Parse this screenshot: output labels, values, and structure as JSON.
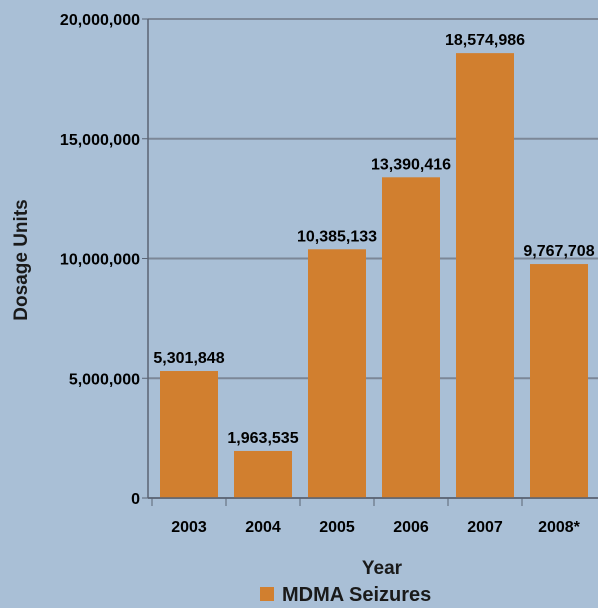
{
  "chart_data": {
    "type": "bar",
    "categories": [
      "2003",
      "2004",
      "2005",
      "2006",
      "2007",
      "2008*"
    ],
    "series": [
      {
        "name": "MDMA Seizures",
        "values": [
          5301848,
          1963535,
          10385133,
          13390416,
          18574986,
          9767708
        ],
        "value_labels": [
          "5,301,848",
          "1,963,535",
          "10,385,133",
          "13,390,416",
          "18,574,986",
          "9,767,708"
        ]
      }
    ],
    "title": "",
    "xlabel": "Year",
    "ylabel": "Dosage Units",
    "ylim": [
      0,
      20000000
    ],
    "yticks": [
      0,
      5000000,
      10000000,
      15000000,
      20000000
    ],
    "ytick_labels": [
      "0",
      "5,000,000",
      "10,000,000",
      "15,000,000",
      "20,000,000"
    ],
    "grid": true,
    "legend": "bottom-center",
    "colors": {
      "background": "#a9bfd6",
      "bar": "#d17f2f",
      "grid": "#7c8797",
      "axis": "#5a6474"
    }
  }
}
